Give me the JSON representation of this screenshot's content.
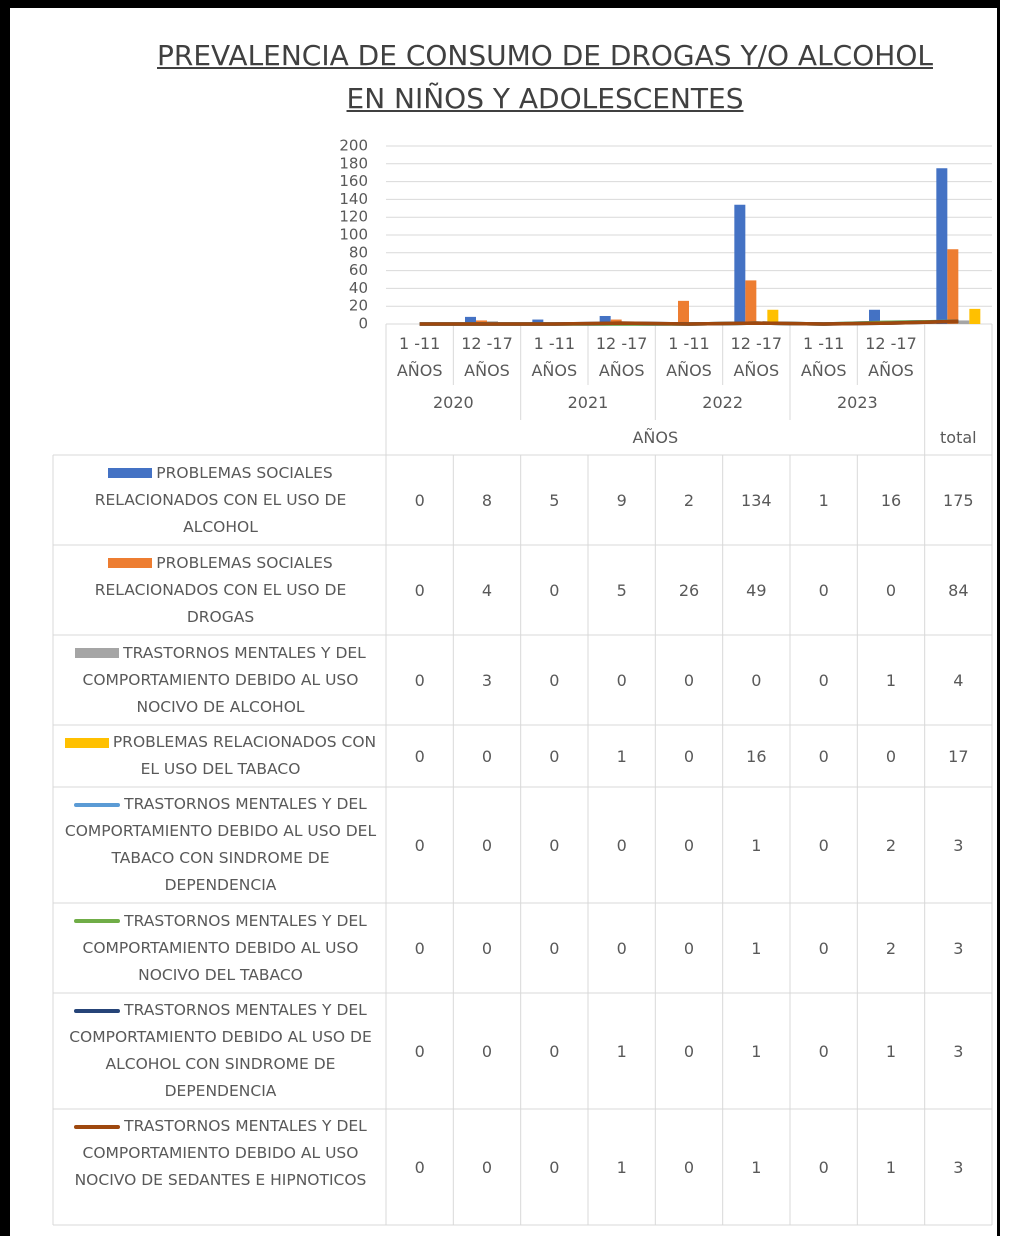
{
  "chart_data": {
    "type": "bar-line-table",
    "title": "PREVALENCIA DE CONSUMO DE DROGAS Y/O ALCOHOL EN NIÑOS Y ADOLESCENTES",
    "categories": [
      "1 -11 AÑOS",
      "12 -17 AÑOS",
      "1 -11 AÑOS",
      "12 -17 AÑOS",
      "1 -11 AÑOS",
      "12 -17 AÑOS",
      "1 -11 AÑOS",
      "12 -17 AÑOS",
      null
    ],
    "category_groups": [
      "2020",
      "2021",
      "2022",
      "2023"
    ],
    "outer_groups": [
      "AÑOS",
      "total"
    ],
    "ylim": [
      0,
      200
    ],
    "yticks": [
      0,
      20,
      40,
      60,
      80,
      100,
      120,
      140,
      160,
      180,
      200
    ],
    "grid": true,
    "series": [
      {
        "name": "PROBLEMAS SOCIALES RELACIONADOS CON EL USO DE ALCOHOL",
        "kind": "bar",
        "color": "#4472c4",
        "values": [
          0,
          8,
          5,
          9,
          2,
          134,
          1,
          16,
          175
        ]
      },
      {
        "name": "PROBLEMAS SOCIALES RELACIONADOS CON EL USO DE DROGAS",
        "kind": "bar",
        "color": "#ed7d31",
        "values": [
          0,
          4,
          0,
          5,
          26,
          49,
          0,
          0,
          84
        ]
      },
      {
        "name": "TRASTORNOS MENTALES Y DEL COMPORTAMIENTO DEBIDO AL USO NOCIVO DE ALCOHOL",
        "kind": "bar",
        "color": "#a5a5a5",
        "values": [
          0,
          3,
          0,
          0,
          0,
          0,
          0,
          1,
          4
        ]
      },
      {
        "name": "PROBLEMAS RELACIONADOS CON EL USO DEL TABACO",
        "kind": "bar",
        "color": "#ffc000",
        "values": [
          0,
          0,
          0,
          1,
          0,
          16,
          0,
          0,
          17
        ]
      },
      {
        "name": "TRASTORNOS MENTALES Y DEL COMPORTAMIENTO DEBIDO AL USO DEL TABACO CON SINDROME DE DEPENDENCIA",
        "kind": "line",
        "color": "#5b9bd5",
        "values": [
          0,
          0,
          0,
          0,
          0,
          1,
          0,
          2,
          3
        ]
      },
      {
        "name": "TRASTORNOS MENTALES Y DEL COMPORTAMIENTO DEBIDO AL USO NOCIVO DEL TABACO",
        "kind": "line",
        "color": "#70ad47",
        "values": [
          0,
          0,
          0,
          0,
          0,
          1,
          0,
          2,
          3
        ]
      },
      {
        "name": "TRASTORNOS MENTALES Y DEL COMPORTAMIENTO DEBIDO AL USO DE ALCOHOL CON SINDROME DE DEPENDENCIA",
        "kind": "line",
        "color": "#264478",
        "values": [
          0,
          0,
          0,
          1,
          0,
          1,
          0,
          1,
          3
        ]
      },
      {
        "name": "TRASTORNOS MENTALES Y DEL COMPORTAMIENTO DEBIDO AL USO NOCIVO DE SEDANTES E HIPNOTICOS",
        "kind": "line",
        "color": "#9e480e",
        "values": [
          0,
          0,
          0,
          1,
          0,
          1,
          0,
          1,
          3
        ]
      }
    ]
  }
}
